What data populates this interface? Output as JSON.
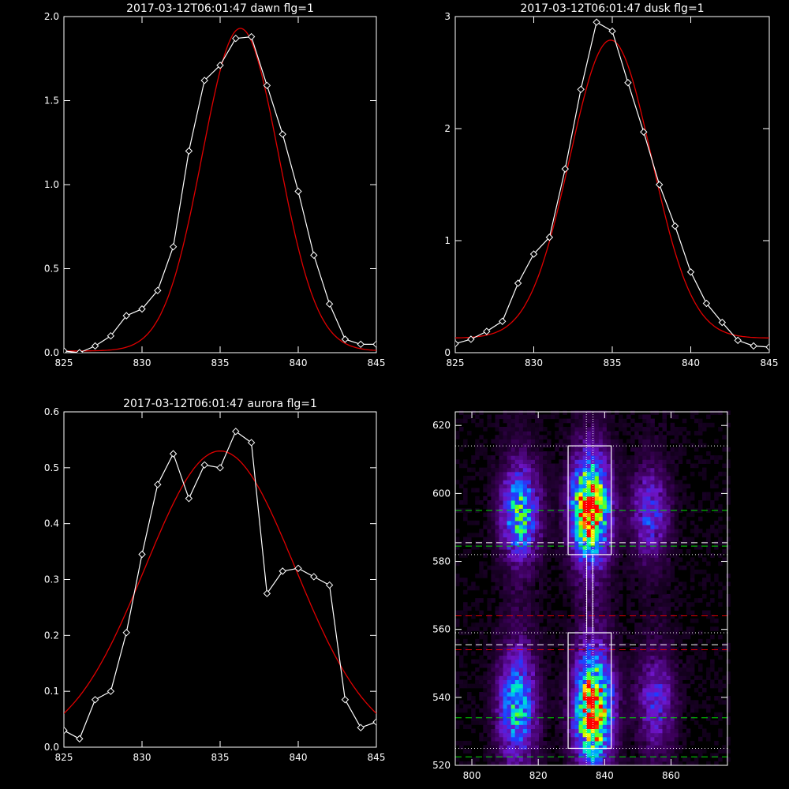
{
  "chart_data": [
    {
      "type": "line",
      "title": "2017-03-12T06:01:47 dawn flg=1",
      "xlim": [
        825,
        845
      ],
      "ylim": [
        0,
        2.0
      ],
      "x_ticks": [
        "825",
        "830",
        "835",
        "840",
        "845"
      ],
      "y_ticks": [
        "0.0",
        "0.5",
        "1.0",
        "1.5",
        "2.0"
      ],
      "series": [
        {
          "kind": "data",
          "color": "#ffffff",
          "marker": "diamond",
          "x": [
            825,
            826,
            827,
            828,
            829,
            830,
            831,
            832,
            833,
            834,
            835,
            836,
            837,
            838,
            839,
            840,
            841,
            842,
            843,
            844,
            845
          ],
          "y": [
            0.01,
            0.0,
            0.04,
            0.1,
            0.22,
            0.26,
            0.37,
            0.63,
            1.2,
            1.62,
            1.71,
            1.87,
            1.88,
            1.59,
            1.3,
            0.96,
            0.58,
            0.29,
            0.08,
            0.05,
            0.05
          ]
        },
        {
          "kind": "fit",
          "color": "#e00000",
          "x0": 836.3,
          "sigma": 2.45,
          "amp": 1.92,
          "base": 0.01
        }
      ]
    },
    {
      "type": "line",
      "title": "2017-03-12T06:01:47 dusk flg=1",
      "xlim": [
        825,
        845
      ],
      "ylim": [
        0,
        3
      ],
      "x_ticks": [
        "825",
        "830",
        "835",
        "840",
        "845"
      ],
      "y_ticks": [
        "0",
        "1",
        "2",
        "3"
      ],
      "series": [
        {
          "kind": "data",
          "color": "#ffffff",
          "marker": "diamond",
          "x": [
            825,
            826,
            827,
            828,
            829,
            830,
            831,
            832,
            833,
            834,
            835,
            836,
            837,
            838,
            839,
            840,
            841,
            842,
            843,
            844,
            845
          ],
          "y": [
            0.08,
            0.12,
            0.19,
            0.28,
            0.62,
            0.88,
            1.03,
            1.64,
            2.35,
            2.95,
            2.87,
            2.41,
            1.97,
            1.5,
            1.13,
            0.72,
            0.44,
            0.27,
            0.11,
            0.06,
            0.05
          ]
        },
        {
          "kind": "fit",
          "color": "#e00000",
          "x0": 834.9,
          "sigma": 2.6,
          "amp": 2.66,
          "base": 0.13
        }
      ]
    },
    {
      "type": "line",
      "title": "2017-03-12T06:01:47 aurora flg=1",
      "xlim": [
        825,
        845
      ],
      "ylim": [
        0,
        0.6
      ],
      "x_ticks": [
        "825",
        "830",
        "835",
        "840",
        "845"
      ],
      "y_ticks": [
        "0.0",
        "0.1",
        "0.2",
        "0.3",
        "0.4",
        "0.5",
        "0.6"
      ],
      "series": [
        {
          "kind": "data",
          "color": "#ffffff",
          "marker": "diamond",
          "x": [
            825,
            826,
            827,
            828,
            829,
            830,
            831,
            832,
            833,
            834,
            835,
            836,
            837,
            838,
            839,
            840,
            841,
            842,
            843,
            844,
            845
          ],
          "y": [
            0.03,
            0.015,
            0.085,
            0.1,
            0.205,
            0.345,
            0.47,
            0.525,
            0.445,
            0.505,
            0.5,
            0.565,
            0.545,
            0.275,
            0.315,
            0.32,
            0.305,
            0.29,
            0.085,
            0.035,
            0.045
          ]
        },
        {
          "kind": "fit",
          "color": "#e00000",
          "x0": 835.0,
          "sigma": 4.8,
          "amp": 0.53,
          "base": 0.0
        }
      ]
    },
    {
      "type": "heatmap",
      "xlim": [
        795,
        877
      ],
      "ylim": [
        520,
        624
      ],
      "x_ticks": [
        "800",
        "820",
        "840",
        "860"
      ],
      "y_ticks": [
        "520",
        "540",
        "560",
        "580",
        "600",
        "620"
      ],
      "blobs": [
        {
          "x": 814,
          "y": 594,
          "sx": 4,
          "sy": 9,
          "amp": 0.55
        },
        {
          "x": 835,
          "y": 595,
          "sx": 4,
          "sy": 10,
          "amp": 0.9
        },
        {
          "x": 853,
          "y": 594,
          "sx": 4,
          "sy": 9,
          "amp": 0.32
        },
        {
          "x": 813,
          "y": 537,
          "sx": 4,
          "sy": 11,
          "amp": 0.5
        },
        {
          "x": 836,
          "y": 536,
          "sx": 4,
          "sy": 11,
          "amp": 0.85
        },
        {
          "x": 855,
          "y": 538,
          "sx": 4,
          "sy": 10,
          "amp": 0.28
        }
      ],
      "boxes": [
        {
          "x": [
            829,
            842
          ],
          "y": [
            582,
            614
          ]
        },
        {
          "x": [
            829,
            842
          ],
          "y": [
            525,
            559
          ]
        }
      ],
      "vertical_dotted_x": [
        834.5,
        836.5
      ],
      "horizontal_lines": [
        {
          "y": 614,
          "style": "dotted",
          "color": "#ffffff"
        },
        {
          "y": 595,
          "style": "dashed",
          "color": "#00e000"
        },
        {
          "y": 585.5,
          "style": "dashed",
          "color": "#ffffff"
        },
        {
          "y": 584.5,
          "style": "dashed",
          "color": "#00e000"
        },
        {
          "y": 582,
          "style": "dotted",
          "color": "#ffffff"
        },
        {
          "y": 564,
          "style": "dashed",
          "color": "#e00000"
        },
        {
          "y": 559,
          "style": "dotted",
          "color": "#ffffff"
        },
        {
          "y": 555.5,
          "style": "dashed",
          "color": "#ffffff"
        },
        {
          "y": 554,
          "style": "dashed",
          "color": "#e00000"
        },
        {
          "y": 534,
          "style": "dashed",
          "color": "#00e000"
        },
        {
          "y": 525,
          "style": "dotted",
          "color": "#ffffff"
        },
        {
          "y": 522.5,
          "style": "dashed",
          "color": "#00e000"
        }
      ]
    }
  ]
}
